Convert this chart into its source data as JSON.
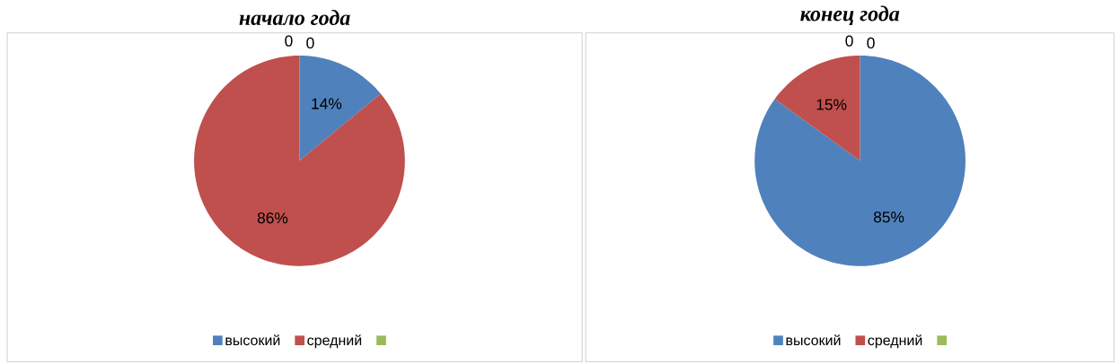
{
  "chart_data": [
    {
      "type": "pie",
      "title": "начало года",
      "categories": [
        "высокий",
        "средний",
        null
      ],
      "values": [
        14,
        86,
        0
      ],
      "value_labels": [
        "14%",
        "86%",
        "0"
      ],
      "colors": [
        "#4f81bd",
        "#c0504d",
        "#9bbb59"
      ],
      "annotations": [
        "0"
      ],
      "legend": "bottom"
    },
    {
      "type": "pie",
      "title": "конец года",
      "categories": [
        "высокий",
        "средний",
        null
      ],
      "values": [
        85,
        15,
        0
      ],
      "value_labels": [
        "85%",
        "15%",
        "0"
      ],
      "colors": [
        "#4f81bd",
        "#c0504d",
        "#9bbb59"
      ],
      "annotations": [
        "0"
      ],
      "legend": "bottom"
    }
  ]
}
